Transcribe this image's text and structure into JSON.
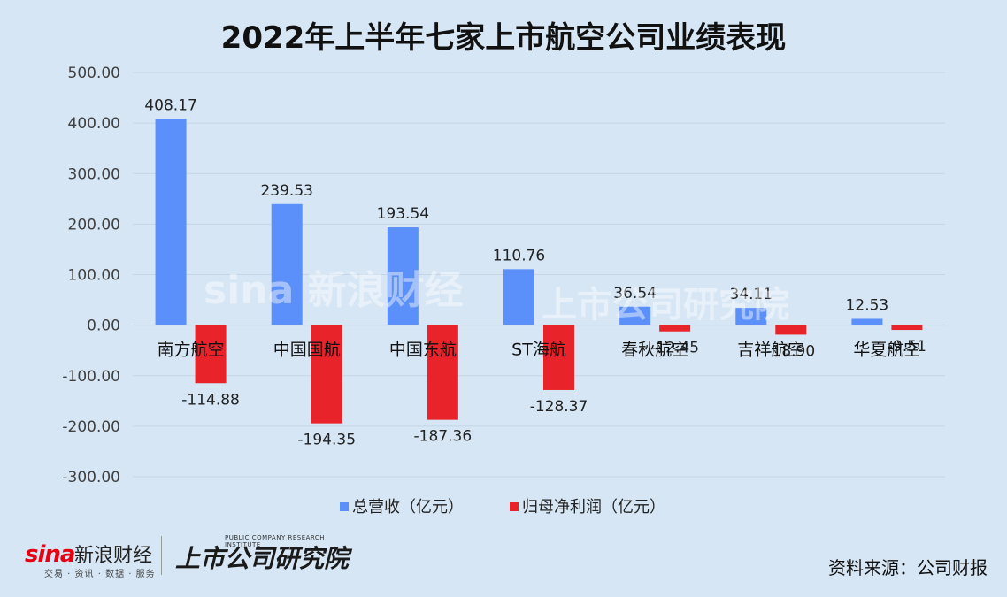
{
  "chart_data": {
    "type": "bar",
    "title": "2022年上半年七家上市航空公司业绩表现",
    "categories": [
      "南方航空",
      "中国国航",
      "中国东航",
      "ST海航",
      "春秋航空",
      "吉祥航空",
      "华夏航空"
    ],
    "series": [
      {
        "name": "总营收（亿元）",
        "values": [
          408.17,
          239.53,
          193.54,
          110.76,
          36.54,
          34.11,
          12.53
        ],
        "color": "#5b8ff9"
      },
      {
        "name": "归母净利润（亿元）",
        "values": [
          -114.88,
          -194.35,
          -187.36,
          -128.37,
          -12.45,
          -18.9,
          -9.51
        ],
        "color": "#e8242a"
      }
    ],
    "value_labels": [
      [
        "408.17",
        "239.53",
        "193.54",
        "110.76",
        "36.54",
        "34.11",
        "12.53"
      ],
      [
        "-114.88",
        "-194.35",
        "-187.36",
        "-128.37",
        "-12.45",
        "-18.90",
        "-9.51"
      ]
    ],
    "ylim": [
      -300,
      500
    ],
    "yticks": [
      500,
      400,
      300,
      200,
      100,
      0,
      -100,
      -200,
      -300
    ],
    "ytick_labels": [
      "500.00",
      "400.00",
      "300.00",
      "200.00",
      "100.00",
      "0.00",
      "-100.00",
      "-200.00",
      "-300.00"
    ],
    "xlabel": "",
    "ylabel": "",
    "grid": true,
    "legend": "bottom-center"
  },
  "footer": {
    "source": "资料来源：公司财报",
    "sina_logo": "sina",
    "sina_name": "新浪财经",
    "sina_tagline": "交易 · 资讯 · 数据 · 服务",
    "institute_name": "上市公司研究院",
    "institute_tagline": "PUBLIC COMPANY RESEARCH INSTITUTE"
  }
}
